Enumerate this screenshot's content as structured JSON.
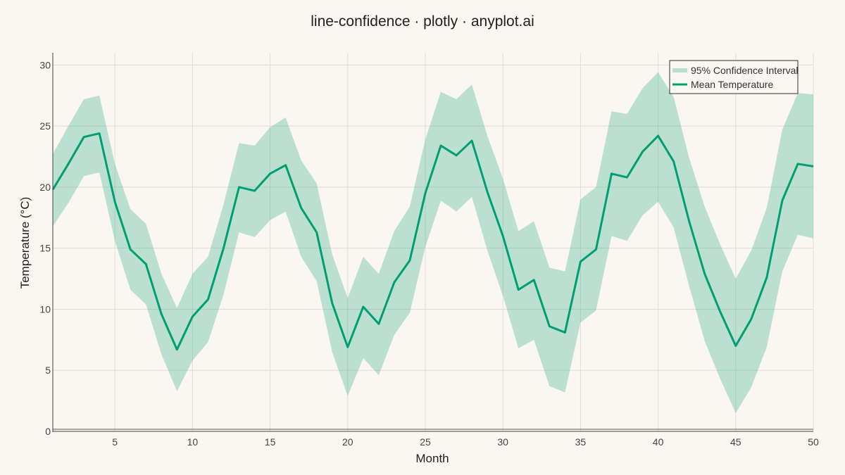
{
  "chart_data": {
    "type": "line",
    "title": "line-confidence · plotly · anyplot.ai",
    "xlabel": "Month",
    "ylabel": "Temperature (°C)",
    "xlim": [
      1,
      50
    ],
    "ylim": [
      0,
      31
    ],
    "xticks": [
      5,
      10,
      15,
      20,
      25,
      30,
      35,
      40,
      45,
      50
    ],
    "yticks": [
      0,
      5,
      10,
      15,
      20,
      25,
      30
    ],
    "grid": true,
    "legend_position": "top-right",
    "x": [
      1,
      2,
      3,
      4,
      5,
      6,
      7,
      8,
      9,
      10,
      11,
      12,
      13,
      14,
      15,
      16,
      17,
      18,
      19,
      20,
      21,
      22,
      23,
      24,
      25,
      26,
      27,
      28,
      29,
      30,
      31,
      32,
      33,
      34,
      35,
      36,
      37,
      38,
      39,
      40,
      41,
      42,
      43,
      44,
      45,
      46,
      47,
      48,
      49,
      50
    ],
    "series": [
      {
        "name": "Mean Temperature",
        "role": "line",
        "color": "#009E73",
        "values": [
          19.8,
          21.9,
          24.1,
          24.4,
          18.8,
          14.9,
          13.7,
          9.6,
          6.7,
          9.4,
          10.8,
          15.0,
          20.0,
          19.7,
          21.1,
          21.8,
          18.3,
          16.3,
          10.5,
          6.9,
          10.2,
          8.8,
          12.2,
          14.0,
          19.5,
          23.4,
          22.6,
          23.8,
          19.6,
          16.0,
          11.6,
          12.4,
          8.6,
          8.1,
          13.9,
          14.9,
          21.1,
          20.8,
          22.9,
          24.2,
          22.1,
          17.2,
          12.9,
          9.8,
          7.0,
          9.2,
          12.6,
          18.9,
          21.9,
          21.7
        ]
      },
      {
        "name": "95% Confidence Interval",
        "role": "band",
        "color": "#009E73",
        "opacity": 0.25,
        "lower": [
          16.8,
          18.7,
          20.9,
          21.2,
          15.6,
          11.6,
          10.4,
          6.3,
          3.3,
          5.8,
          7.3,
          11.2,
          16.3,
          15.9,
          17.3,
          18.0,
          14.3,
          12.3,
          6.5,
          2.9,
          6.0,
          4.6,
          7.9,
          9.7,
          15.1,
          18.9,
          18.0,
          19.2,
          14.8,
          11.1,
          6.8,
          7.5,
          3.7,
          3.2,
          8.9,
          9.9,
          16.0,
          15.6,
          17.7,
          18.8,
          16.7,
          11.9,
          7.4,
          4.3,
          1.5,
          3.6,
          6.9,
          13.1,
          16.1,
          15.8
        ],
        "upper": [
          22.7,
          25.0,
          27.2,
          27.5,
          21.9,
          18.2,
          17.0,
          12.9,
          10.1,
          12.9,
          14.3,
          18.6,
          23.6,
          23.4,
          24.9,
          25.7,
          22.2,
          20.3,
          14.5,
          10.9,
          14.3,
          12.9,
          16.4,
          18.4,
          23.9,
          27.8,
          27.2,
          28.4,
          24.2,
          20.7,
          16.4,
          17.2,
          13.4,
          13.1,
          19.0,
          20.0,
          26.2,
          26.0,
          28.1,
          29.4,
          27.4,
          22.4,
          18.4,
          15.3,
          12.5,
          14.8,
          18.3,
          24.7,
          27.7,
          27.6
        ]
      }
    ]
  }
}
